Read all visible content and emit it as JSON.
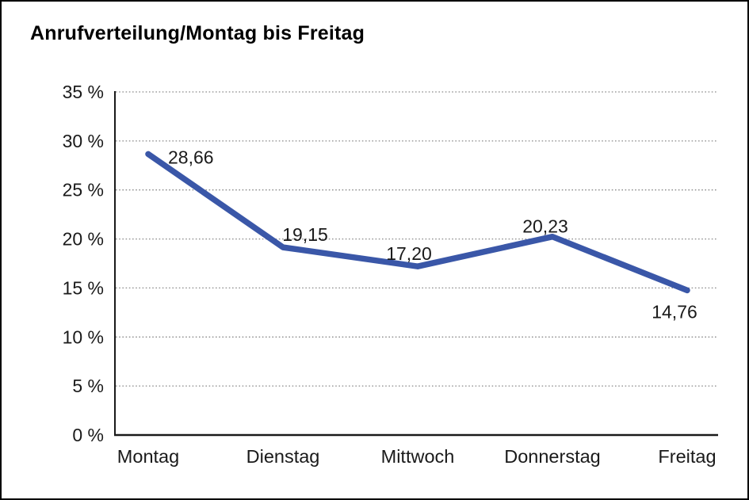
{
  "title": "Anrufverteilung/Montag bis Freitag",
  "chart_data": {
    "type": "line",
    "title": "Anrufverteilung/Montag bis Freitag",
    "categories": [
      "Montag",
      "Dienstag",
      "Mittwoch",
      "Donnerstag",
      "Freitag"
    ],
    "series": [
      {
        "name": "Anrufverteilung",
        "values": [
          28.66,
          19.15,
          17.2,
          20.23,
          14.76
        ]
      }
    ],
    "point_labels": [
      "28,66",
      "19,15",
      "17,20",
      "20,23",
      "14,76"
    ],
    "y_tick_labels": [
      "0 %",
      "5 %",
      "10 %",
      "15 %",
      "20 %",
      "25 %",
      "30 %",
      "35 %"
    ],
    "xlabel": "",
    "ylabel": "",
    "ylim": [
      0,
      35
    ],
    "y_step": 5,
    "grid": "horizontal-dotted",
    "legend": "none",
    "line_color": "#3A57A8",
    "axis_color": "#1a1a1a",
    "grid_color": "#8a8a8a",
    "text_color": "#1a1a1a",
    "background": "#ffffff"
  }
}
